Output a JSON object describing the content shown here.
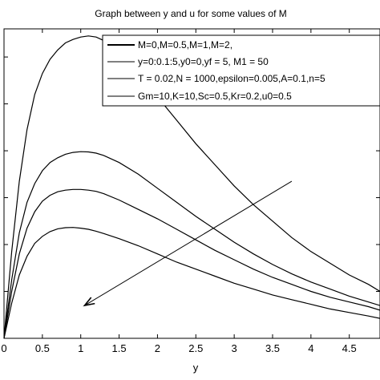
{
  "chart_data": {
    "type": "line",
    "title": "Graph between y and u for some values of M",
    "xlabel": "y",
    "ylabel": "",
    "xlim": [
      0,
      4.9
    ],
    "ylim": [
      0,
      1.32
    ],
    "x_ticks": [
      "0",
      "0.5",
      "1",
      "1.5",
      "2",
      "2.5",
      "3",
      "3.5",
      "4",
      "4.5"
    ],
    "x_tick_values": [
      0,
      0.5,
      1,
      1.5,
      2,
      2.5,
      3,
      3.5,
      4,
      4.5
    ],
    "y_tick_values": [
      0.2,
      0.4,
      0.6,
      0.8,
      1.0,
      1.2
    ],
    "grid": false,
    "legend_position": "top-right",
    "legend": [
      "M=0,M=0.5,M=1,M=2,",
      "y=0:0.1:5,y0=0,yf = 5, M1 = 50",
      "T = 0.02,N = 1000,epsilon=0.005,A=0.1,n=5",
      "Gm=10,K=10,Sc=0.5,Kr=0.2,u0=0.5"
    ],
    "series": [
      {
        "x": [
          0,
          0.1,
          0.2,
          0.3,
          0.4,
          0.5,
          0.6,
          0.7,
          0.8,
          0.9,
          1.0,
          1.1,
          1.2,
          1.3,
          1.5,
          1.75,
          2.0,
          2.25,
          2.5,
          2.75,
          3.0,
          3.25,
          3.5,
          3.75,
          4.0,
          4.25,
          4.5,
          4.75,
          4.9
        ],
        "values": [
          0.0,
          0.37,
          0.67,
          0.89,
          1.04,
          1.13,
          1.19,
          1.23,
          1.26,
          1.275,
          1.285,
          1.29,
          1.285,
          1.27,
          1.22,
          1.13,
          1.03,
          0.93,
          0.83,
          0.74,
          0.65,
          0.57,
          0.5,
          0.43,
          0.37,
          0.32,
          0.27,
          0.23,
          0.2
        ]
      },
      {
        "x": [
          0,
          0.1,
          0.2,
          0.3,
          0.4,
          0.5,
          0.6,
          0.7,
          0.8,
          0.9,
          1.0,
          1.1,
          1.2,
          1.3,
          1.5,
          1.75,
          2.0,
          2.25,
          2.5,
          2.75,
          3.0,
          3.25,
          3.5,
          3.75,
          4.0,
          4.25,
          4.5,
          4.75,
          4.9
        ],
        "values": [
          0.0,
          0.25,
          0.45,
          0.58,
          0.66,
          0.715,
          0.75,
          0.77,
          0.785,
          0.793,
          0.796,
          0.795,
          0.79,
          0.78,
          0.75,
          0.7,
          0.64,
          0.58,
          0.52,
          0.465,
          0.41,
          0.36,
          0.315,
          0.275,
          0.24,
          0.21,
          0.18,
          0.155,
          0.14
        ]
      },
      {
        "x": [
          0,
          0.1,
          0.2,
          0.3,
          0.4,
          0.5,
          0.6,
          0.7,
          0.8,
          0.9,
          1.0,
          1.1,
          1.2,
          1.3,
          1.5,
          1.75,
          2.0,
          2.25,
          2.5,
          2.75,
          3.0,
          3.25,
          3.5,
          3.75,
          4.0,
          4.25,
          4.5,
          4.75,
          4.9
        ],
        "values": [
          0.0,
          0.2,
          0.36,
          0.47,
          0.54,
          0.585,
          0.61,
          0.625,
          0.632,
          0.635,
          0.635,
          0.632,
          0.627,
          0.617,
          0.59,
          0.55,
          0.51,
          0.465,
          0.42,
          0.375,
          0.335,
          0.295,
          0.26,
          0.23,
          0.2,
          0.175,
          0.155,
          0.135,
          0.12
        ]
      },
      {
        "x": [
          0,
          0.1,
          0.2,
          0.3,
          0.4,
          0.5,
          0.6,
          0.7,
          0.8,
          0.9,
          1.0,
          1.1,
          1.2,
          1.3,
          1.5,
          1.75,
          2.0,
          2.25,
          2.5,
          2.75,
          3.0,
          3.25,
          3.5,
          3.75,
          4.0,
          4.25,
          4.5,
          4.75,
          4.9
        ],
        "values": [
          0.0,
          0.15,
          0.27,
          0.35,
          0.405,
          0.435,
          0.455,
          0.467,
          0.472,
          0.473,
          0.47,
          0.465,
          0.457,
          0.447,
          0.425,
          0.395,
          0.36,
          0.325,
          0.295,
          0.265,
          0.235,
          0.21,
          0.185,
          0.165,
          0.145,
          0.125,
          0.11,
          0.095,
          0.085
        ]
      }
    ],
    "annotation_arrow": {
      "from": [
        3.75,
        0.67
      ],
      "to": [
        1.05,
        0.14
      ]
    }
  }
}
